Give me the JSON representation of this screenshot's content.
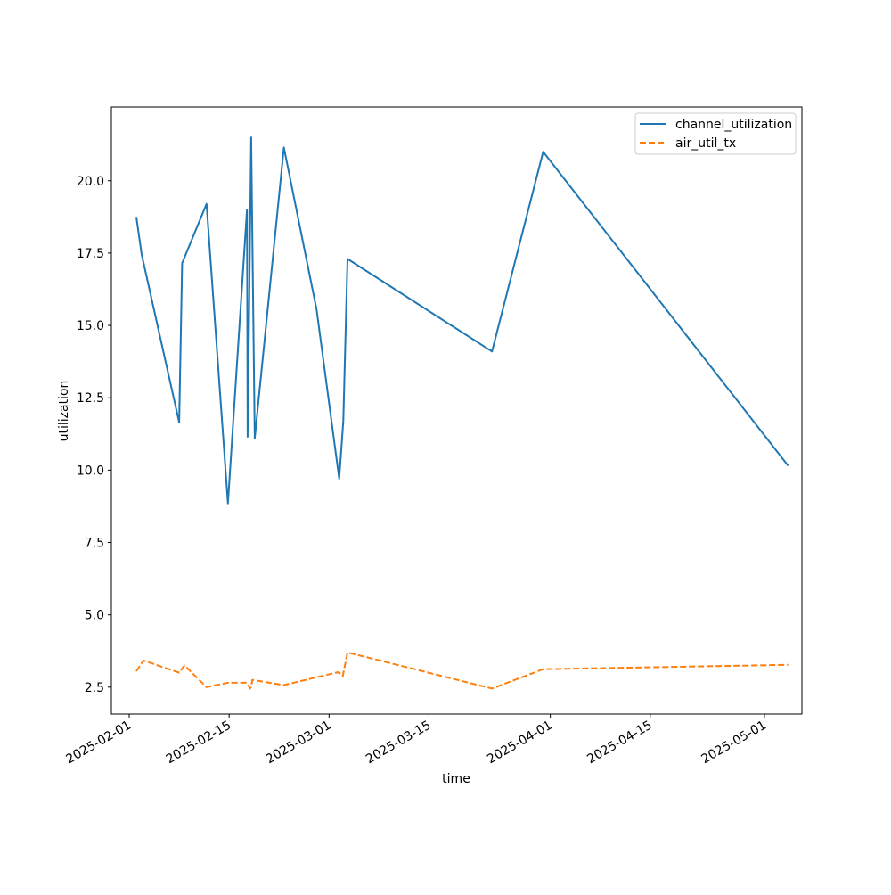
{
  "chart_data": {
    "type": "line",
    "title": "",
    "xlabel": "time",
    "ylabel": "utilization",
    "x_axis_type": "date",
    "xlim": [
      "2025-01-29T12:00",
      "2025-05-06T06:00"
    ],
    "ylim": [
      1.57,
      22.55
    ],
    "xticks": [
      "2025-02-01",
      "2025-02-15",
      "2025-03-01",
      "2025-03-15",
      "2025-04-01",
      "2025-04-15",
      "2025-05-01"
    ],
    "yticks": [
      2.5,
      5.0,
      7.5,
      10.0,
      12.5,
      15.0,
      17.5,
      20.0
    ],
    "ytick_labels": [
      "2.5",
      "5.0",
      "7.5",
      "10.0",
      "12.5",
      "15.0",
      "17.5",
      "20.0"
    ],
    "grid": false,
    "legend_position": "top-right",
    "series": [
      {
        "name": "channel_utilization",
        "color": "#1f77b4",
        "line_style": "solid",
        "x": [
          "2025-02-02T00:00",
          "2025-02-02T18:00",
          "2025-02-08T00:00",
          "2025-02-08T10:00",
          "2025-02-11T20:00",
          "2025-02-14T20:00",
          "2025-02-17T12:00",
          "2025-02-17T14:00",
          "2025-02-18T02:00",
          "2025-02-18T14:00",
          "2025-02-22T16:00",
          "2025-02-27T06:00",
          "2025-03-02T10:00",
          "2025-03-03T00:00",
          "2025-03-03T14:00",
          "2025-03-23T20:00",
          "2025-03-31T00:00",
          "2025-05-04T08:00"
        ],
        "y": [
          18.75,
          17.45,
          11.65,
          17.15,
          19.2,
          8.85,
          19.0,
          11.15,
          21.5,
          11.1,
          21.15,
          15.55,
          9.7,
          11.7,
          17.3,
          14.1,
          21.0,
          10.15
        ]
      },
      {
        "name": "air_util_tx",
        "color": "#ff7f0e",
        "line_style": "dashed",
        "x": [
          "2025-02-02T00:00",
          "2025-02-03T00:00",
          "2025-02-08T00:00",
          "2025-02-08T18:00",
          "2025-02-11T20:00",
          "2025-02-14T20:00",
          "2025-02-17T12:00",
          "2025-02-17T22:00",
          "2025-02-18T02:00",
          "2025-02-18T06:00",
          "2025-02-22T16:00",
          "2025-03-02T08:00",
          "2025-03-02T22:00",
          "2025-03-03T14:00",
          "2025-03-23T20:00",
          "2025-03-31T00:00",
          "2025-05-04T08:00"
        ],
        "y": [
          3.05,
          3.42,
          3.0,
          3.25,
          2.5,
          2.65,
          2.65,
          2.45,
          2.5,
          2.75,
          2.57,
          3.02,
          2.88,
          3.7,
          2.45,
          3.12,
          3.27
        ]
      }
    ]
  }
}
